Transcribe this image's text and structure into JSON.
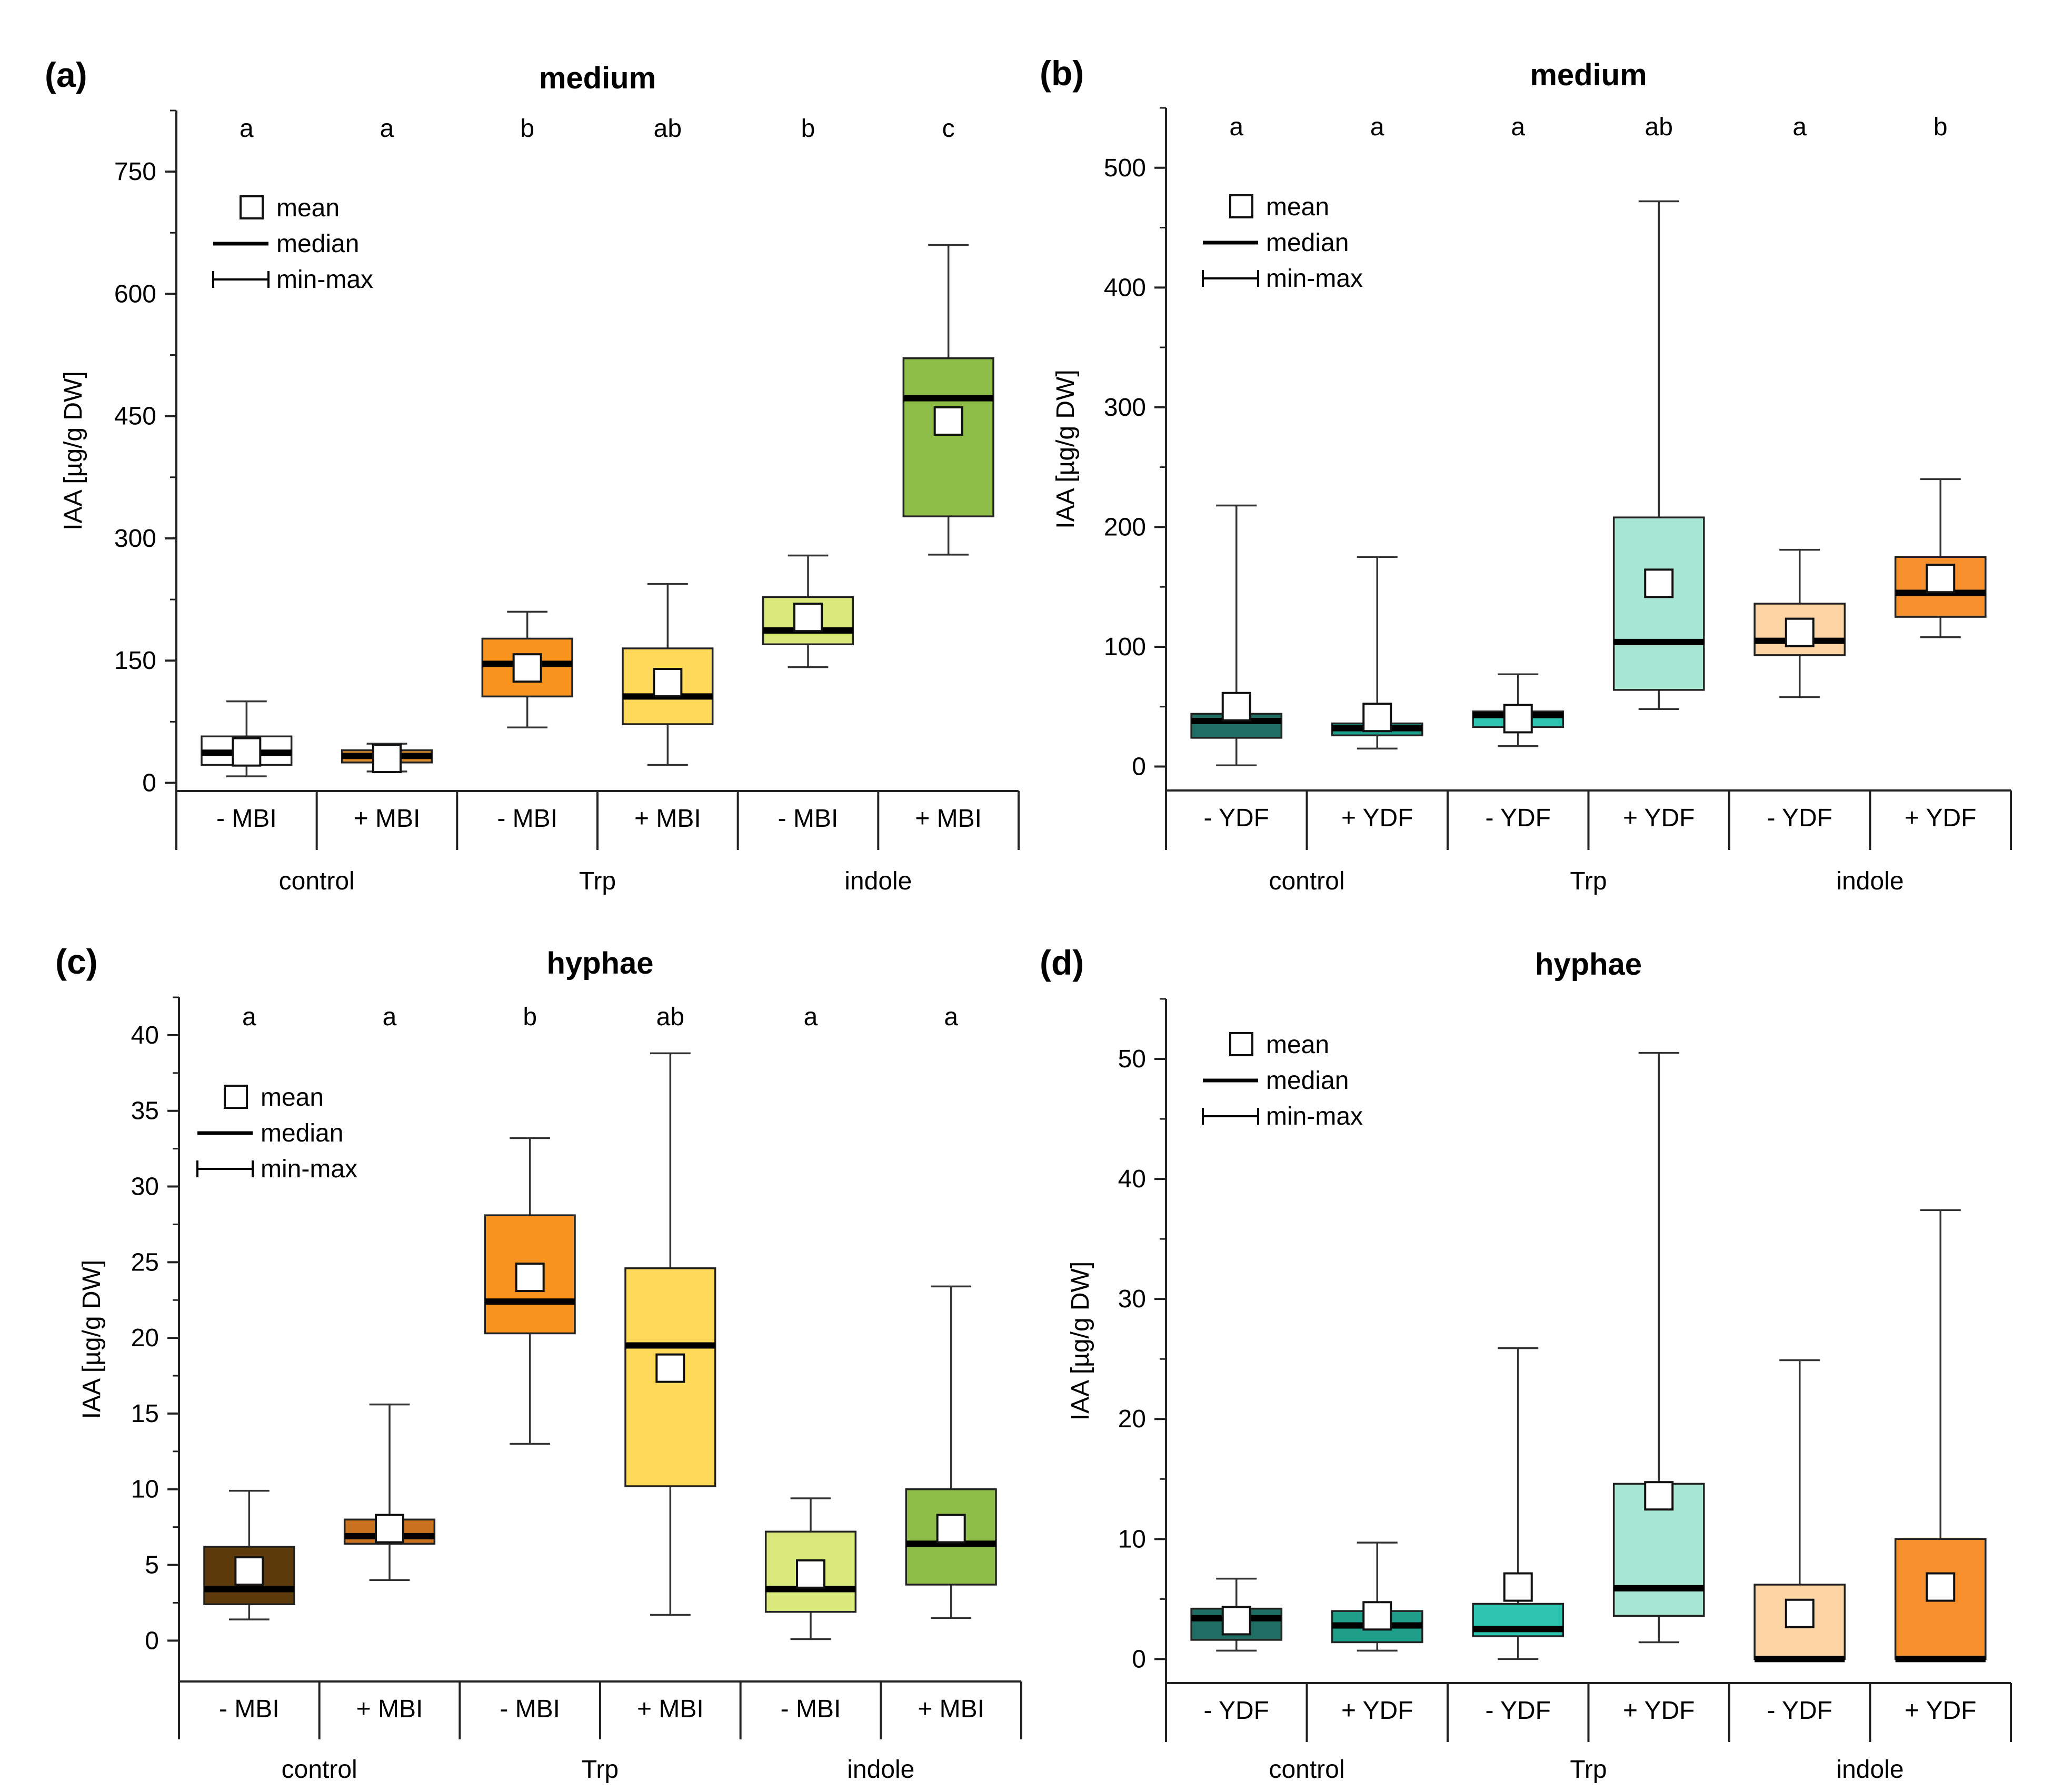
{
  "chart_data": [
    {
      "type": "box",
      "panel": "(a)",
      "title": "medium",
      "ylabel": "IAA [µg/g DW]",
      "ylim": [
        -10,
        825
      ],
      "yticks": [
        0,
        150,
        300,
        450,
        600,
        750
      ],
      "categories": [
        "- MBI",
        "+ MBI",
        "- MBI",
        "+ MBI",
        "- MBI",
        "+ MBI"
      ],
      "groups": [
        "control",
        "Trp",
        "indole"
      ],
      "letters": [
        "a",
        "a",
        "b",
        "ab",
        "b",
        "c"
      ],
      "legend": {
        "mean": "mean",
        "median": "median",
        "range": "min-max"
      },
      "boxes": [
        {
          "min": 8,
          "q1": 22,
          "median": 37,
          "q3": 57,
          "max": 100,
          "mean": 38,
          "color": "#ffffff"
        },
        {
          "min": 14,
          "q1": 25,
          "median": 33,
          "q3": 40,
          "max": 48,
          "mean": 30,
          "color": "#d98c2b"
        },
        {
          "min": 68,
          "q1": 106,
          "median": 146,
          "q3": 177,
          "max": 210,
          "mean": 141,
          "color": "#f7931e"
        },
        {
          "min": 22,
          "q1": 72,
          "median": 106,
          "q3": 165,
          "max": 244,
          "mean": 123,
          "color": "#ffd95a"
        },
        {
          "min": 142,
          "q1": 170,
          "median": 187,
          "q3": 228,
          "max": 279,
          "mean": 203,
          "color": "#d9e87a"
        },
        {
          "min": 280,
          "q1": 327,
          "median": 472,
          "q3": 521,
          "max": 660,
          "mean": 444,
          "color": "#8fbd4a"
        }
      ]
    },
    {
      "type": "box",
      "panel": "(b)",
      "title": "medium",
      "ylabel": "IAA [µg/g DW]",
      "ylim": [
        -20,
        550
      ],
      "yticks": [
        0,
        100,
        200,
        300,
        400,
        500
      ],
      "categories": [
        "- YDF",
        "+ YDF",
        "- YDF",
        "+ YDF",
        "- YDF",
        "+ YDF"
      ],
      "groups": [
        "control",
        "Trp",
        "indole"
      ],
      "letters": [
        "a",
        "a",
        "a",
        "ab",
        "a",
        "b"
      ],
      "legend": {
        "mean": "mean",
        "median": "median",
        "range": "min-max"
      },
      "boxes": [
        {
          "min": 1,
          "q1": 24,
          "median": 38,
          "q3": 44,
          "max": 218,
          "mean": 50,
          "color": "#1f6e63"
        },
        {
          "min": 15,
          "q1": 26,
          "median": 32,
          "q3": 36,
          "max": 175,
          "mean": 41,
          "color": "#1f9e8a"
        },
        {
          "min": 17,
          "q1": 33,
          "median": 43,
          "q3": 46,
          "max": 77,
          "mean": 40,
          "color": "#2ec4b0"
        },
        {
          "min": 48,
          "q1": 64,
          "median": 104,
          "q3": 208,
          "max": 472,
          "mean": 153,
          "color": "#a8e6d4"
        },
        {
          "min": 58,
          "q1": 93,
          "median": 105,
          "q3": 136,
          "max": 181,
          "mean": 112,
          "color": "#fdd5a5"
        },
        {
          "min": 108,
          "q1": 125,
          "median": 145,
          "q3": 175,
          "max": 240,
          "mean": 157,
          "color": "#f7902c"
        }
      ]
    },
    {
      "type": "box",
      "panel": "(c)",
      "title": "hyphae",
      "ylabel": "IAA [µg/g DW]",
      "ylim": [
        -2.7,
        42.5
      ],
      "yticks": [
        0,
        5,
        10,
        15,
        20,
        25,
        30,
        35,
        40
      ],
      "categories": [
        "- MBI",
        "+ MBI",
        "- MBI",
        "+ MBI",
        "- MBI",
        "+ MBI"
      ],
      "groups": [
        "control",
        "Trp",
        "indole"
      ],
      "letters": [
        "a",
        "a",
        "b",
        "ab",
        "a",
        "a"
      ],
      "legend": {
        "mean": "mean",
        "median": "median",
        "range": "min-max"
      },
      "boxes": [
        {
          "min": 1.4,
          "q1": 2.4,
          "median": 3.4,
          "q3": 6.2,
          "max": 9.9,
          "mean": 4.6,
          "color": "#5c3a0c"
        },
        {
          "min": 4.0,
          "q1": 6.4,
          "median": 6.9,
          "q3": 8.0,
          "max": 15.6,
          "mean": 7.4,
          "color": "#c8711e"
        },
        {
          "min": 13.0,
          "q1": 20.3,
          "median": 22.4,
          "q3": 28.1,
          "max": 33.2,
          "mean": 24.0,
          "color": "#f7931e"
        },
        {
          "min": 1.7,
          "q1": 10.2,
          "median": 19.5,
          "q3": 24.6,
          "max": 38.8,
          "mean": 18.0,
          "color": "#ffd95a"
        },
        {
          "min": 0.1,
          "q1": 1.9,
          "median": 3.4,
          "q3": 7.2,
          "max": 9.4,
          "mean": 4.4,
          "color": "#d9e87a"
        },
        {
          "min": 1.5,
          "q1": 3.7,
          "median": 6.4,
          "q3": 10.0,
          "max": 23.4,
          "mean": 7.4,
          "color": "#8fbd4a"
        }
      ]
    },
    {
      "type": "box",
      "panel": "(d)",
      "title": "hyphae",
      "ylabel": "IAA [µg/g DW]",
      "ylim": [
        -2,
        55
      ],
      "yticks": [
        0,
        10,
        20,
        30,
        40,
        50
      ],
      "categories": [
        "- YDF",
        "+ YDF",
        "- YDF",
        "+ YDF",
        "- YDF",
        "+ YDF"
      ],
      "groups": [
        "control",
        "Trp",
        "indole"
      ],
      "letters": [],
      "legend": {
        "mean": "mean",
        "median": "median",
        "range": "min-max"
      },
      "boxes": [
        {
          "min": 0.7,
          "q1": 1.6,
          "median": 3.4,
          "q3": 4.2,
          "max": 6.7,
          "mean": 3.2,
          "color": "#1f6e63"
        },
        {
          "min": 0.7,
          "q1": 1.4,
          "median": 2.8,
          "q3": 4.0,
          "max": 9.7,
          "mean": 3.6,
          "color": "#1f9e8a"
        },
        {
          "min": 0.0,
          "q1": 1.9,
          "median": 2.5,
          "q3": 4.6,
          "max": 25.9,
          "mean": 6.0,
          "color": "#2ec4b0"
        },
        {
          "min": 1.4,
          "q1": 3.6,
          "median": 5.9,
          "q3": 14.6,
          "max": 50.5,
          "mean": 13.6,
          "color": "#a8e6d4"
        },
        {
          "min": 0.0,
          "q1": 0.0,
          "median": 0.0,
          "q3": 6.2,
          "max": 24.9,
          "mean": 3.8,
          "color": "#fdd5a5"
        },
        {
          "min": 0.0,
          "q1": 0.0,
          "median": 0.0,
          "q3": 10.0,
          "max": 37.4,
          "mean": 6.0,
          "color": "#f7902c"
        }
      ]
    }
  ]
}
